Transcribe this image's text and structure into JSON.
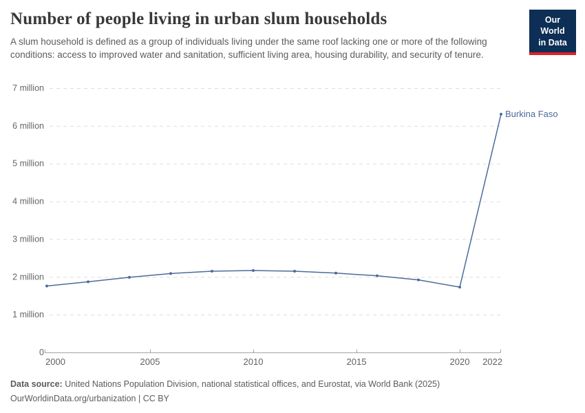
{
  "header": {
    "title": "Number of people living in urban slum households",
    "subtitle": "A slum household is defined as a group of individuals living under the same roof lacking one or more of the following conditions: access to improved water and sanitation, sufficient living area, housing durability, and security of tenure.",
    "logo": {
      "line1": "Our World",
      "line2": "in Data"
    }
  },
  "colors": {
    "series": "#4c6a9c",
    "grid": "#dddddd",
    "axis": "#a3a3a3",
    "logo_bg": "#0d2e55",
    "logo_accent": "#dc2227"
  },
  "chart_data": {
    "type": "line",
    "title": "Number of people living in urban slum households",
    "xlabel": "",
    "ylabel": "",
    "unit": "million people",
    "x": [
      2000,
      2002,
      2004,
      2006,
      2008,
      2010,
      2012,
      2014,
      2016,
      2018,
      2020,
      2022
    ],
    "series": [
      {
        "name": "Burkina Faso",
        "values": [
          1.76,
          1.87,
          1.99,
          2.09,
          2.15,
          2.17,
          2.15,
          2.1,
          2.03,
          1.92,
          1.73,
          6.31
        ]
      }
    ],
    "ylim": [
      0,
      7
    ],
    "y_ticks": [
      0,
      1,
      2,
      3,
      4,
      5,
      6,
      7
    ],
    "y_tick_format": "{n} million",
    "y_tick_zero_label": "0",
    "x_tick_labels": [
      2000,
      2005,
      2010,
      2015,
      2020,
      2022
    ],
    "grid": "horizontal-dashed",
    "legend_position": "end-of-line-label",
    "end_label": "Burkina Faso"
  },
  "footer": {
    "source_label": "Data source:",
    "source_text": " United Nations Population Division, national statistical offices, and Eurostat, via World Bank (2025)",
    "citation_line": "OurWorldinData.org/urbanization | CC BY"
  }
}
